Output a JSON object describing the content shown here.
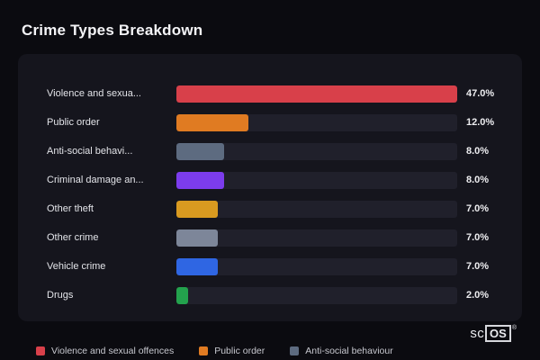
{
  "page": {
    "title": "Crime Types Breakdown"
  },
  "chart_data": {
    "type": "bar",
    "orientation": "horizontal",
    "title": "Crime Types Breakdown",
    "categories": [
      "Violence and sexua...",
      "Public order",
      "Anti-social behavi...",
      "Criminal damage an...",
      "Other theft",
      "Other crime",
      "Vehicle crime",
      "Drugs"
    ],
    "values": [
      47.0,
      12.0,
      8.0,
      8.0,
      7.0,
      7.0,
      7.0,
      2.0
    ],
    "value_labels": [
      "47.0%",
      "12.0%",
      "8.0%",
      "8.0%",
      "7.0%",
      "7.0%",
      "7.0%",
      "2.0%"
    ],
    "bar_colors": [
      "#d8404a",
      "#e07b22",
      "#5d6b80",
      "#7c3ced",
      "#d99a20",
      "#7d8699",
      "#2f66e3",
      "#23a24d"
    ],
    "max_value": 47.0,
    "xlim": [
      0,
      47
    ],
    "track_color": "#20202b",
    "grid": false,
    "legend_position": "bottom"
  },
  "legend": {
    "items": [
      {
        "label": "Violence and sexual offences",
        "color": "#d8404a"
      },
      {
        "label": "Public order",
        "color": "#e07b22"
      },
      {
        "label": "Anti-social behaviour",
        "color": "#5d6b80"
      }
    ]
  },
  "branding": {
    "prefix": "sc",
    "boxed": "OS",
    "reg": "®"
  }
}
